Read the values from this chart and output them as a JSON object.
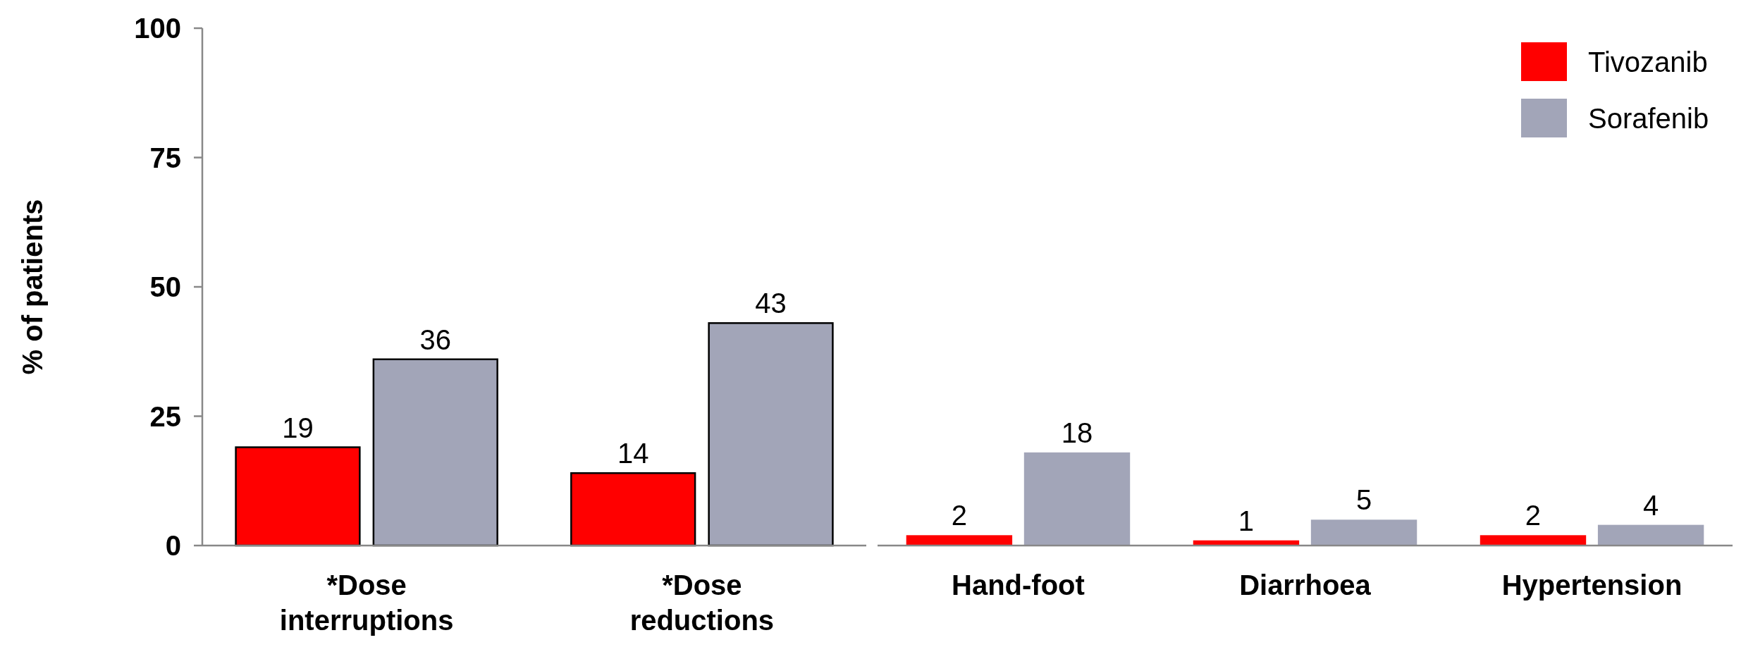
{
  "chart_data": [
    {
      "type": "bar",
      "ylabel": "% of patients",
      "categories": [
        "*Dose interruptions",
        "*Dose reductions"
      ],
      "ylim": [
        0,
        100
      ],
      "yticks": [
        0,
        25,
        50,
        75,
        100
      ],
      "data_labels": true,
      "grid": false,
      "legend": false,
      "series": [
        {
          "color": "#ff0000",
          "values": [
            19,
            14
          ]
        },
        {
          "color": "#a2a5b8",
          "values": [
            36,
            43
          ]
        }
      ]
    },
    {
      "type": "bar",
      "categories": [
        "Hand-foot",
        "Diarrhoea",
        "Hypertension"
      ],
      "ylim": [
        0,
        100
      ],
      "tick_labels": "x",
      "data_labels": true,
      "grid": false,
      "legend": "top right",
      "series": [
        {
          "name": "Tivozanib",
          "color": "#ff0000",
          "values": [
            2,
            1,
            2
          ]
        },
        {
          "name": "Sorafenib",
          "color": "#a2a5b8",
          "values": [
            18,
            5,
            4
          ]
        }
      ]
    }
  ]
}
